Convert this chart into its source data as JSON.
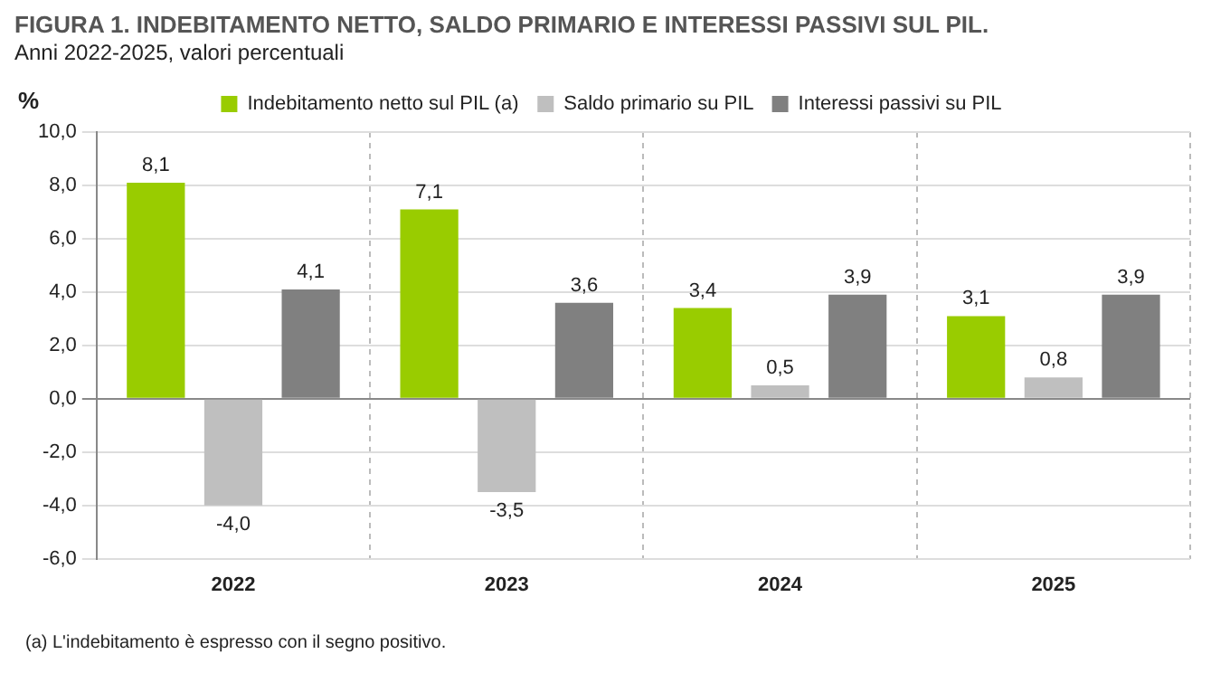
{
  "chart_data": {
    "type": "bar",
    "title": "FIGURA 1. INDEBITAMENTO NETTO, SALDO PRIMARIO E INTERESSI PASSIVI SUL PIL.",
    "subtitle": "Anni 2022-2025, valori percentuali",
    "ylabel": "%",
    "categories": [
      "2022",
      "2023",
      "2024",
      "2025"
    ],
    "series": [
      {
        "name": "Indebitamento netto sul PIL (a)",
        "color": "#99cc00",
        "values": [
          8.1,
          7.1,
          3.4,
          3.1
        ],
        "value_labels": [
          "8,1",
          "7,1",
          "3,4",
          "3,1"
        ]
      },
      {
        "name": "Saldo primario su PIL",
        "color": "#bfbfbf",
        "values": [
          -4.0,
          -3.5,
          0.5,
          0.8
        ],
        "value_labels": [
          "-4,0",
          "-3,5",
          "0,5",
          "0,8"
        ]
      },
      {
        "name": "Interessi passivi su PIL",
        "color": "#808080",
        "values": [
          4.1,
          3.6,
          3.9,
          3.9
        ],
        "value_labels": [
          "4,1",
          "3,6",
          "3,9",
          "3,9"
        ]
      }
    ],
    "ylim": [
      -6,
      10
    ],
    "yticks": [
      {
        "value": -6,
        "label": "-6,0"
      },
      {
        "value": -4,
        "label": "-4,0"
      },
      {
        "value": -2,
        "label": "-2,0"
      },
      {
        "value": 0,
        "label": "0,0"
      },
      {
        "value": 2,
        "label": "2,0"
      },
      {
        "value": 4,
        "label": "4,0"
      },
      {
        "value": 6,
        "label": "6,0"
      },
      {
        "value": 8,
        "label": "8,0"
      },
      {
        "value": 10,
        "label": "10,0"
      }
    ],
    "grid": true,
    "legend": "top",
    "annotations": [
      "(a) L'indebitamento è espresso con il segno positivo."
    ]
  }
}
